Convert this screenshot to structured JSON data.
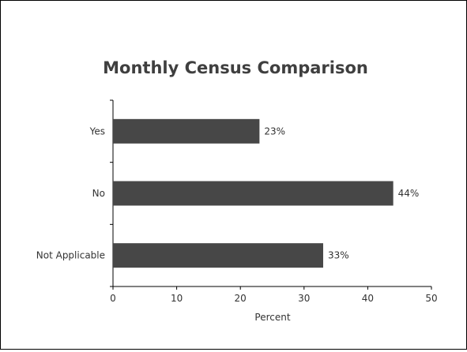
{
  "chart_data": {
    "type": "bar",
    "orientation": "horizontal",
    "title": "Monthly Census Comparison",
    "xlabel": "Percent",
    "ylabel": "",
    "categories": [
      "Yes",
      "No",
      "Not Applicable"
    ],
    "values": [
      23,
      44,
      33
    ],
    "data_labels": [
      "23%",
      "44%",
      "33%"
    ],
    "xlim": [
      0,
      50
    ],
    "xticks": [
      0,
      10,
      20,
      30,
      40,
      50
    ],
    "grid": false,
    "legend": "none",
    "bar_color": "#474747"
  }
}
